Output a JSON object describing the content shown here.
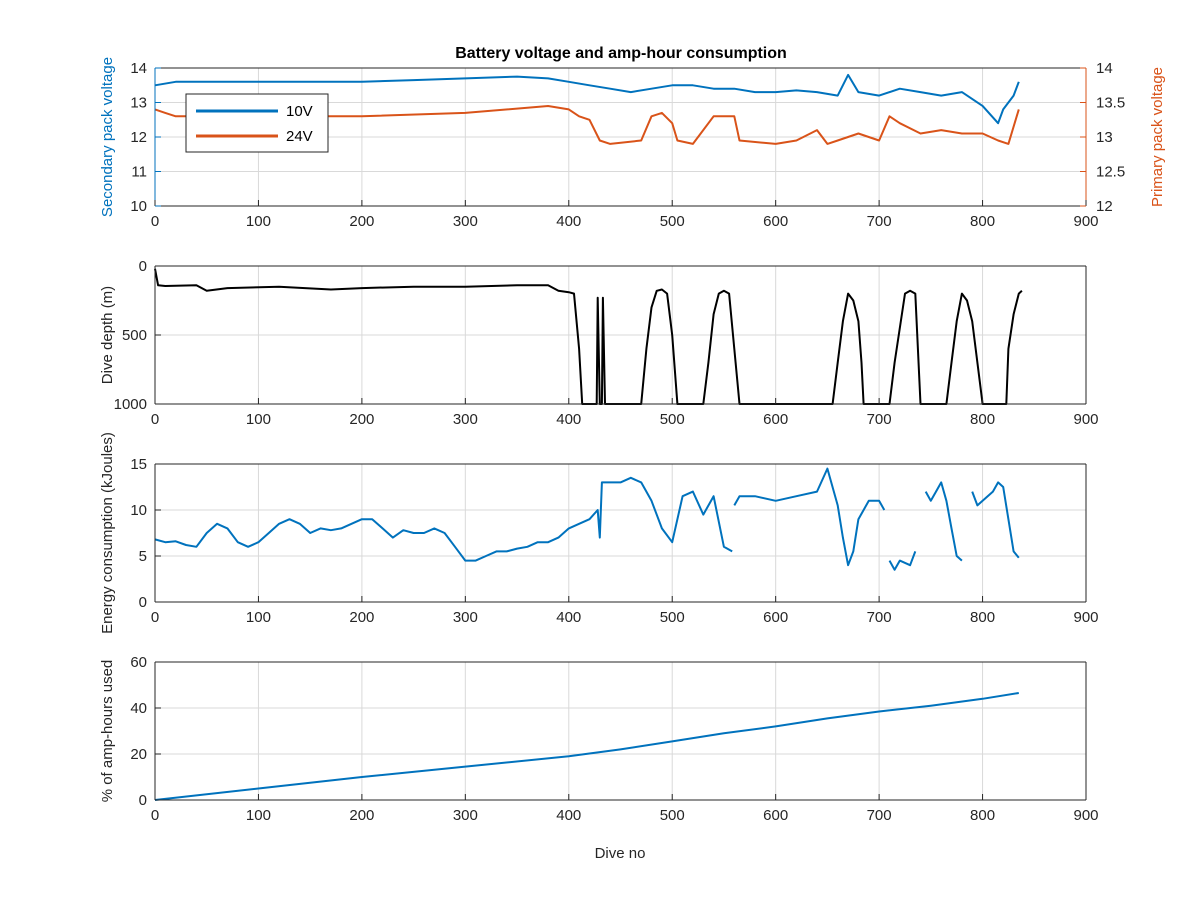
{
  "figure": {
    "title": "Battery voltage and amp-hour consumption",
    "xlabel": "Dive no",
    "background": "#ffffff",
    "colors": {
      "blue": "#0072BD",
      "orange": "#D95319",
      "black": "#000000",
      "grid": "#d9d9d9",
      "axis": "#262626"
    }
  },
  "chart_data": [
    {
      "type": "line",
      "title": "Battery voltage and amp-hour consumption",
      "xlabel": "",
      "ylabel": "Secondary pack voltage",
      "ylabel_right": "Primary pack voltage",
      "xlim": [
        0,
        900
      ],
      "ylim": [
        10,
        14
      ],
      "ylim_right": [
        12,
        14
      ],
      "xticks": [
        0,
        100,
        200,
        300,
        400,
        500,
        600,
        700,
        800,
        900
      ],
      "yticks": [
        10,
        11,
        12,
        13,
        14
      ],
      "yticks_right": [
        12,
        12.5,
        13,
        13.5,
        14
      ],
      "ytick_labels_right": [
        "12",
        "12.5",
        "13",
        "13.5",
        "14"
      ],
      "grid": true,
      "legend": {
        "location": "top-left",
        "entries": [
          "10V",
          "24V"
        ]
      },
      "series": [
        {
          "name": "10V",
          "axis": "left",
          "color": "#0072BD",
          "x": [
            0,
            20,
            50,
            100,
            150,
            200,
            250,
            300,
            350,
            380,
            400,
            420,
            440,
            460,
            480,
            500,
            520,
            540,
            560,
            580,
            600,
            620,
            640,
            660,
            670,
            680,
            700,
            720,
            740,
            760,
            780,
            800,
            815,
            820,
            830,
            835
          ],
          "y": [
            13.5,
            13.6,
            13.6,
            13.6,
            13.6,
            13.6,
            13.65,
            13.7,
            13.75,
            13.7,
            13.6,
            13.5,
            13.4,
            13.3,
            13.4,
            13.5,
            13.5,
            13.4,
            13.4,
            13.3,
            13.3,
            13.35,
            13.3,
            13.2,
            13.8,
            13.3,
            13.2,
            13.4,
            13.3,
            13.2,
            13.3,
            12.9,
            12.4,
            12.8,
            13.2,
            13.6
          ]
        },
        {
          "name": "24V",
          "axis": "right",
          "color": "#D95319",
          "x": [
            0,
            10,
            20,
            100,
            200,
            300,
            380,
            400,
            410,
            420,
            430,
            440,
            470,
            480,
            490,
            500,
            505,
            520,
            540,
            550,
            560,
            565,
            600,
            620,
            640,
            650,
            660,
            680,
            700,
            710,
            720,
            740,
            760,
            780,
            800,
            815,
            825,
            835
          ],
          "y": [
            13.4,
            13.35,
            13.3,
            13.3,
            13.3,
            13.35,
            13.45,
            13.4,
            13.3,
            13.25,
            12.95,
            12.9,
            12.95,
            13.3,
            13.35,
            13.2,
            12.95,
            12.9,
            13.3,
            13.3,
            13.3,
            12.95,
            12.9,
            12.95,
            13.1,
            12.9,
            12.95,
            13.05,
            12.95,
            13.3,
            13.2,
            13.05,
            13.1,
            13.05,
            13.05,
            12.95,
            12.9,
            13.4
          ]
        }
      ]
    },
    {
      "type": "line",
      "ylabel": "Dive depth (m)",
      "xlim": [
        0,
        900
      ],
      "ylim": [
        0,
        1000
      ],
      "y_reversed": true,
      "xticks": [
        0,
        100,
        200,
        300,
        400,
        500,
        600,
        700,
        800,
        900
      ],
      "yticks": [
        0,
        500,
        1000
      ],
      "grid": true,
      "series": [
        {
          "color": "#000000",
          "x": [
            0,
            3,
            10,
            40,
            50,
            70,
            120,
            170,
            200,
            250,
            300,
            350,
            380,
            390,
            400,
            405,
            410,
            413,
            415,
            425,
            427,
            428,
            430,
            432,
            433,
            435,
            470,
            475,
            480,
            485,
            490,
            495,
            500,
            505,
            510,
            530,
            535,
            540,
            545,
            550,
            555,
            560,
            565,
            600,
            650,
            655,
            660,
            665,
            670,
            675,
            680,
            683,
            685,
            700,
            705,
            710,
            715,
            725,
            730,
            735,
            740,
            760,
            765,
            770,
            775,
            780,
            785,
            790,
            800,
            820,
            823,
            825,
            830,
            835,
            838
          ],
          "y": [
            20,
            140,
            145,
            140,
            180,
            160,
            150,
            170,
            160,
            150,
            150,
            140,
            140,
            180,
            190,
            200,
            600,
            1000,
            1000,
            1000,
            1000,
            230,
            1000,
            1000,
            230,
            1000,
            1000,
            600,
            300,
            180,
            170,
            200,
            500,
            1000,
            1000,
            1000,
            700,
            350,
            200,
            180,
            200,
            600,
            1000,
            1000,
            1000,
            1000,
            700,
            400,
            200,
            250,
            400,
            700,
            1000,
            1000,
            1000,
            1000,
            700,
            200,
            180,
            200,
            1000,
            1000,
            1000,
            700,
            400,
            200,
            250,
            400,
            1000,
            1000,
            1000,
            600,
            350,
            200,
            180
          ]
        }
      ]
    },
    {
      "type": "line",
      "ylabel": "Energy consumption (kJoules)",
      "xlim": [
        0,
        900
      ],
      "ylim": [
        0,
        15
      ],
      "xticks": [
        0,
        100,
        200,
        300,
        400,
        500,
        600,
        700,
        800,
        900
      ],
      "yticks": [
        0,
        5,
        10,
        15
      ],
      "grid": true,
      "series": [
        {
          "color": "#0072BD",
          "segments": [
            {
              "x": [
                0,
                10,
                20,
                30,
                40,
                50,
                60,
                70,
                80,
                90,
                100,
                110,
                120,
                130,
                140,
                150,
                160,
                170,
                180,
                190,
                200,
                210,
                220,
                230,
                240,
                250,
                260,
                270,
                280,
                290,
                300,
                310,
                320,
                330,
                340,
                350,
                360,
                370,
                380,
                390,
                400,
                410,
                420,
                428,
                430,
                432,
                440,
                450,
                460,
                470,
                480,
                490,
                500,
                510,
                520,
                530,
                540,
                550,
                558
              ],
              "y": [
                6.8,
                6.5,
                6.6,
                6.2,
                6.0,
                7.5,
                8.5,
                8.0,
                6.5,
                6.0,
                6.5,
                7.5,
                8.5,
                9.0,
                8.5,
                7.5,
                8.0,
                7.8,
                8.0,
                8.5,
                9.0,
                9.0,
                8.0,
                7.0,
                7.8,
                7.5,
                7.5,
                8.0,
                7.5,
                6.0,
                4.5,
                4.5,
                5.0,
                5.5,
                5.5,
                5.8,
                6.0,
                6.5,
                6.5,
                7.0,
                8.0,
                8.5,
                9.0,
                10.0,
                7.0,
                13.0,
                13.0,
                13.0,
                13.5,
                13.0,
                11.0,
                8.0,
                6.5,
                11.5,
                12.0,
                9.5,
                11.5,
                6.0,
                5.5
              ]
            },
            {
              "x": [
                560,
                565,
                580,
                600,
                620,
                640,
                650,
                660,
                665,
                670,
                675,
                680,
                690,
                700,
                705
              ],
              "y": [
                10.5,
                11.5,
                11.5,
                11.0,
                11.5,
                12.0,
                14.5,
                10.5,
                7.0,
                4.0,
                5.5,
                9.0,
                11.0,
                11.0,
                10.0
              ]
            },
            {
              "x": [
                710,
                715,
                720,
                730,
                735
              ],
              "y": [
                4.5,
                3.5,
                4.5,
                4.0,
                5.5
              ]
            },
            {
              "x": [
                745,
                750,
                755,
                760,
                765,
                770,
                775,
                780
              ],
              "y": [
                12.0,
                11.0,
                12.0,
                13.0,
                11.0,
                8.0,
                5.0,
                4.5
              ]
            },
            {
              "x": [
                790,
                795,
                800,
                810,
                815,
                820,
                825,
                830,
                835
              ],
              "y": [
                12.0,
                10.5,
                11.0,
                12.0,
                13.0,
                12.5,
                9.0,
                5.5,
                4.8
              ]
            }
          ]
        }
      ]
    },
    {
      "type": "line",
      "ylabel": "% of amp-hours used",
      "xlabel": "Dive no",
      "xlim": [
        0,
        900
      ],
      "ylim": [
        0,
        60
      ],
      "xticks": [
        0,
        100,
        200,
        300,
        400,
        500,
        600,
        700,
        800,
        900
      ],
      "yticks": [
        0,
        20,
        40,
        60
      ],
      "grid": true,
      "series": [
        {
          "color": "#0072BD",
          "x": [
            0,
            100,
            200,
            300,
            400,
            450,
            500,
            550,
            600,
            650,
            700,
            750,
            800,
            835
          ],
          "y": [
            0,
            5,
            10,
            14.5,
            19,
            22,
            25.5,
            29,
            32,
            35.5,
            38.5,
            41,
            44,
            46.5
          ]
        }
      ]
    }
  ]
}
